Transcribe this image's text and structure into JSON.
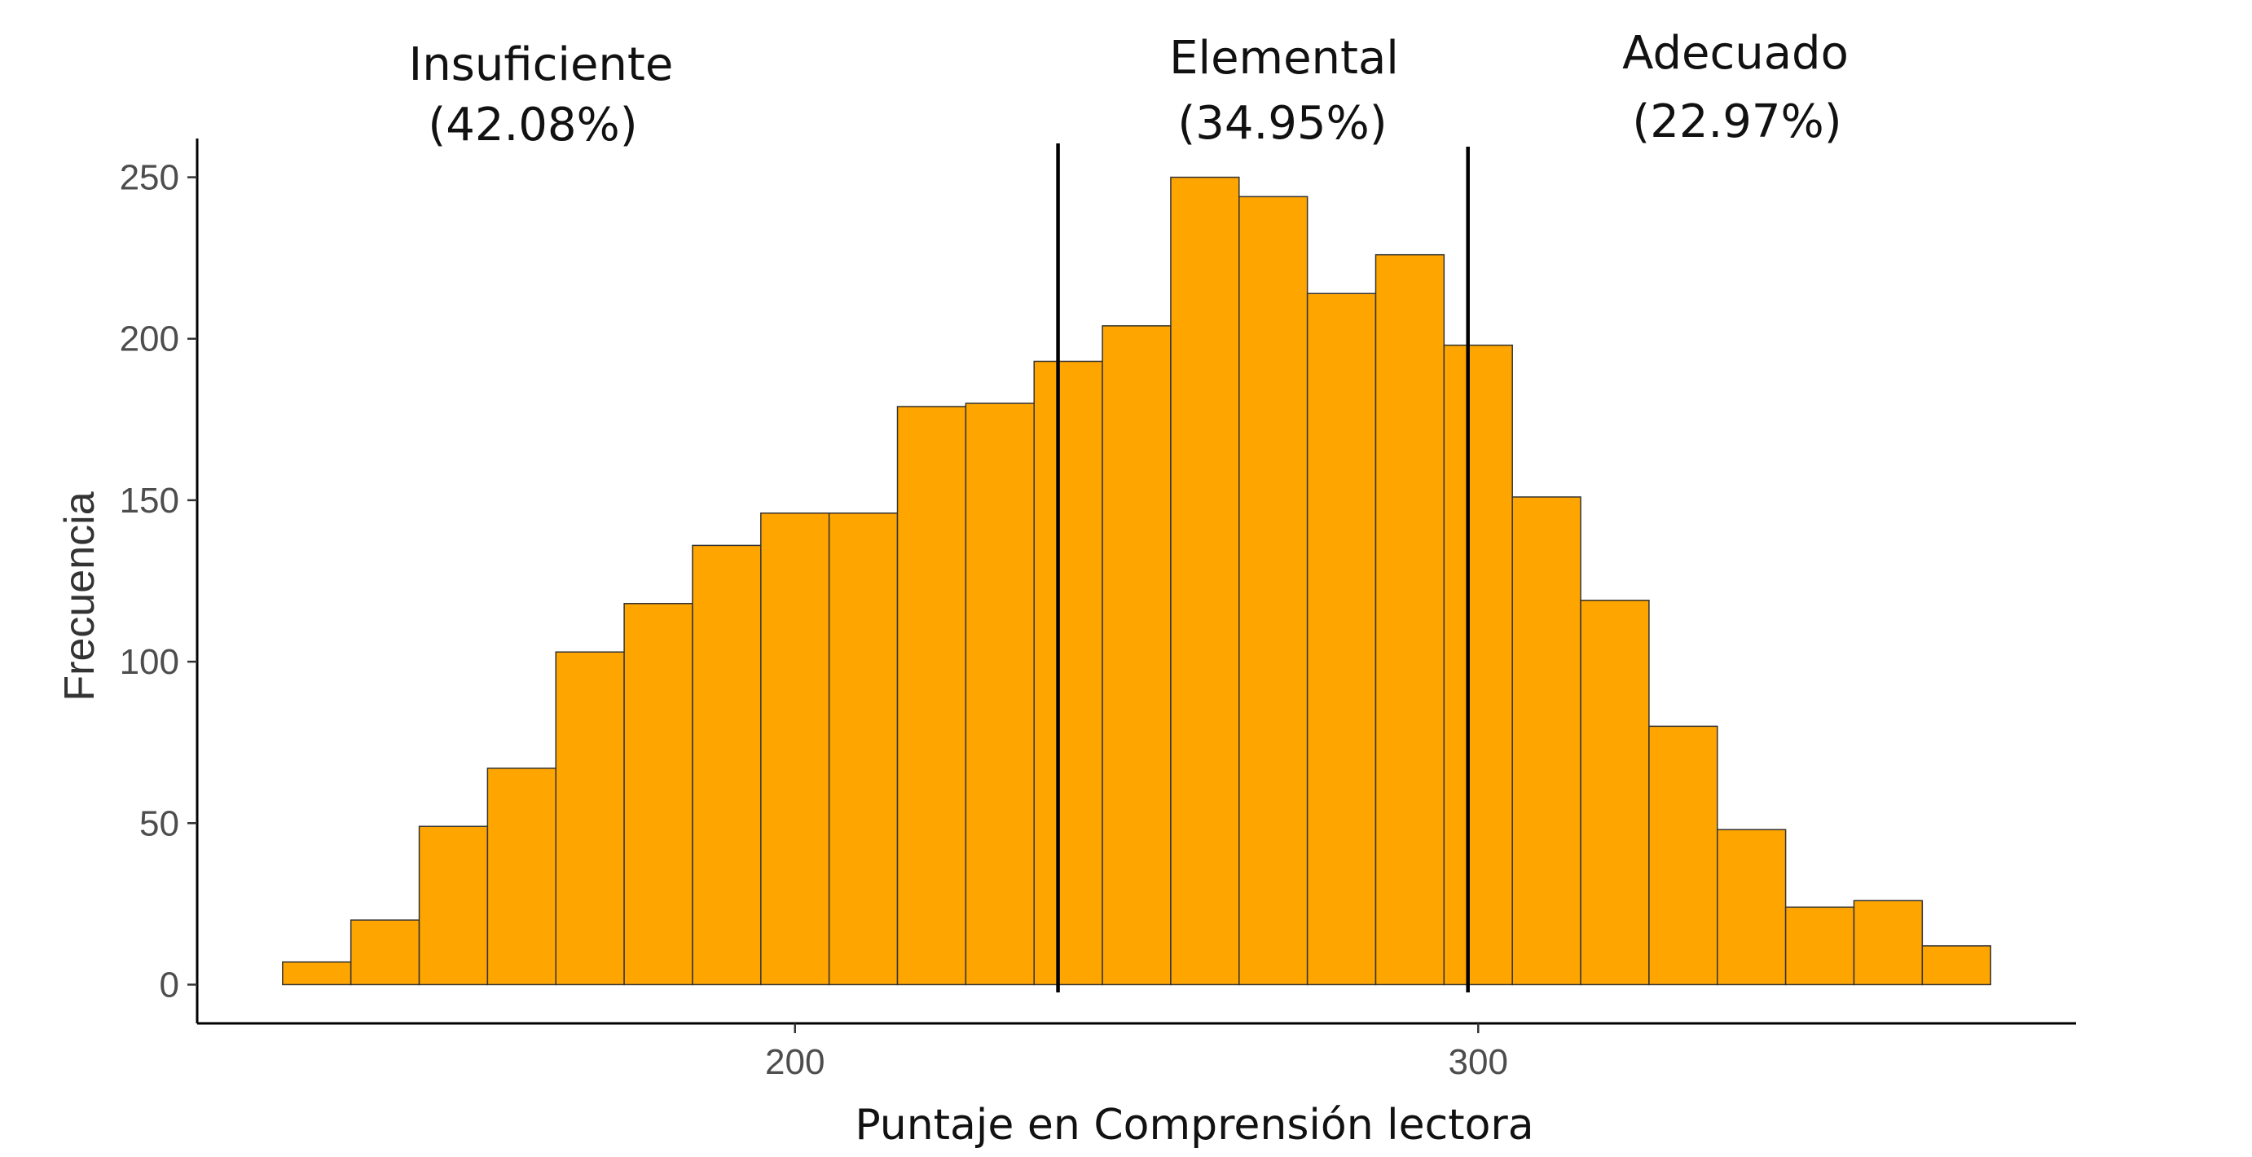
{
  "chart_data": {
    "type": "bar",
    "title": "",
    "xlabel": "Puntaje en Comprensión lectora",
    "ylabel": "Frecuencia",
    "bin_width": 10,
    "bin_starts": [
      125,
      135,
      145,
      155,
      165,
      175,
      185,
      195,
      205,
      215,
      225,
      235,
      245,
      255,
      265,
      275,
      285,
      295,
      305,
      315,
      325,
      335,
      345,
      355,
      365
    ],
    "values": [
      7,
      20,
      49,
      67,
      103,
      118,
      136,
      146,
      146,
      179,
      180,
      193,
      204,
      250,
      244,
      214,
      226,
      198,
      151,
      119,
      80,
      48,
      24,
      26,
      12
    ],
    "fill_color": "#FFA500",
    "xlim": [
      112.5,
      387.5
    ],
    "ylim": [
      -12,
      262
    ],
    "x_ticks": [
      200,
      300
    ],
    "y_ticks": [
      0,
      50,
      100,
      150,
      200,
      250
    ],
    "grid": false,
    "vlines": [
      238.5,
      298.5
    ],
    "regions": [
      {
        "name": "Insuficiente",
        "pct": "(42.08%)"
      },
      {
        "name": "Elemental",
        "pct": "(34.95%)"
      },
      {
        "name": "Adecuado",
        "pct": "(22.97%)"
      }
    ]
  }
}
